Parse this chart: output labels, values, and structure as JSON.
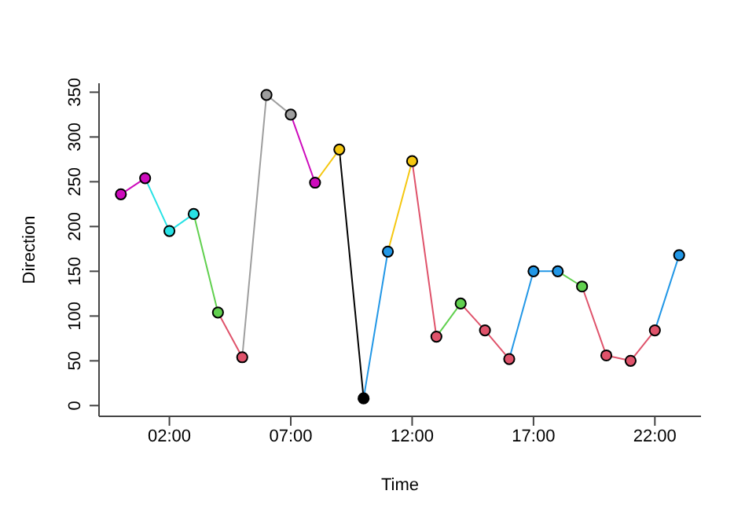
{
  "chart_data": {
    "type": "line",
    "xlabel": "Time",
    "ylabel": "Direction",
    "x": [
      0,
      1,
      2,
      3,
      4,
      5,
      6,
      7,
      8,
      9,
      10,
      11,
      12,
      13,
      14,
      15,
      16,
      17,
      18,
      19,
      20,
      21,
      22,
      23
    ],
    "series": [
      {
        "values": [
          236,
          254,
          195,
          214,
          104,
          54,
          347,
          325,
          249,
          286,
          8,
          172,
          273,
          77,
          114,
          84,
          52,
          150,
          150,
          133,
          56,
          50,
          84,
          168
        ],
        "colors": [
          "#cd0bbc",
          "#cd0bbc",
          "#28e2e5",
          "#28e2e5",
          "#61d04f",
          "#df536b",
          "#9e9e9e",
          "#9e9e9e",
          "#cd0bbc",
          "#f5c710",
          "#000000",
          "#2297e6",
          "#f5c710",
          "#df536b",
          "#61d04f",
          "#df536b",
          "#df536b",
          "#2297e6",
          "#2297e6",
          "#61d04f",
          "#df536b",
          "#df536b",
          "#df536b",
          "#2297e6"
        ]
      }
    ],
    "xlim": [
      -0.9,
      23.9
    ],
    "ylim": [
      -12,
      360
    ],
    "xticks": [
      {
        "value": 2,
        "label": "02:00"
      },
      {
        "value": 7,
        "label": "07:00"
      },
      {
        "value": 12,
        "label": "12:00"
      },
      {
        "value": 17,
        "label": "17:00"
      },
      {
        "value": 22,
        "label": "22:00"
      }
    ],
    "yticks": [
      0,
      50,
      100,
      150,
      200,
      250,
      300,
      350
    ],
    "marker": "circle",
    "line_style": "solid",
    "grid": false
  }
}
